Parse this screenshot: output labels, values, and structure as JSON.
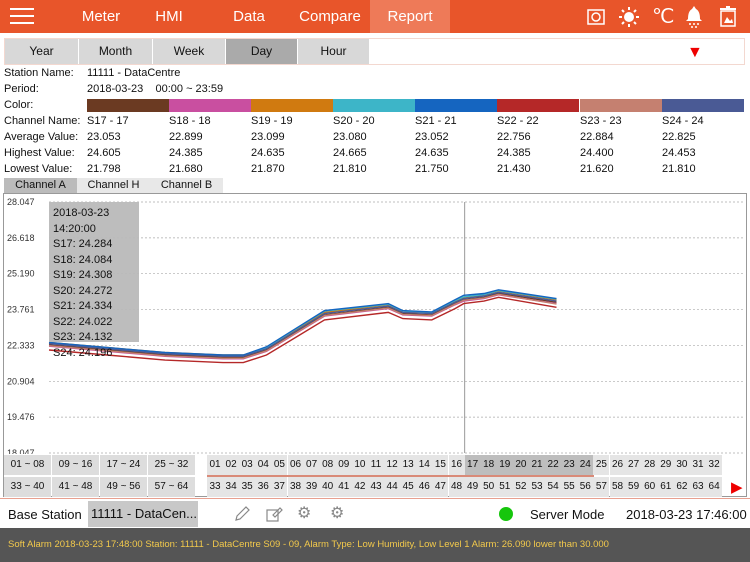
{
  "header": {
    "nav": [
      "Meter",
      "HMI",
      "Data",
      "Compare",
      "Report"
    ],
    "active": "Report",
    "icons": [
      "camera-icon",
      "brightness-icon",
      "celsius-icon",
      "alarm-bell-icon",
      "trash-icon"
    ],
    "celsius": "℃",
    "accent": "#E8552A"
  },
  "periods": {
    "items": [
      "Year",
      "Month",
      "Week",
      "Day",
      "Hour"
    ],
    "selected": "Day"
  },
  "info": {
    "station_label": "Station Name:",
    "station": "11111 - DataCentre",
    "period_label": "Period:",
    "period": "2018-03-23    00:00 ~ 23:59",
    "color_label": "Color:",
    "channel_label": "Channel Name:",
    "avg_label": "Average Value:",
    "high_label": "Highest Value:",
    "low_label": "Lowest Value:",
    "channels": [
      {
        "name": "S17 - 17",
        "avg": "23.053",
        "high": "24.605",
        "low": "21.798",
        "color": "#6B3A22"
      },
      {
        "name": "S18 - 18",
        "avg": "22.899",
        "high": "24.385",
        "low": "21.680",
        "color": "#C94FA0"
      },
      {
        "name": "S19 - 19",
        "avg": "23.099",
        "high": "24.635",
        "low": "21.870",
        "color": "#D07A10"
      },
      {
        "name": "S20 - 20",
        "avg": "23.080",
        "high": "24.665",
        "low": "21.810",
        "color": "#3DB5C8"
      },
      {
        "name": "S21 - 21",
        "avg": "23.052",
        "high": "24.635",
        "low": "21.750",
        "color": "#1565C0"
      },
      {
        "name": "S22 - 22",
        "avg": "22.756",
        "high": "24.385",
        "low": "21.430",
        "color": "#B52828"
      },
      {
        "name": "S23 - 23",
        "avg": "22.884",
        "high": "24.400",
        "low": "21.620",
        "color": "#C58070"
      },
      {
        "name": "S24 - 24",
        "avg": "22.825",
        "high": "24.453",
        "low": "21.810",
        "color": "#4A5A95"
      }
    ]
  },
  "channel_tabs": {
    "items": [
      "Channel A",
      "Channel H",
      "Channel B"
    ],
    "selected": "Channel A"
  },
  "tooltip": {
    "time": "2018-03-23 14:20:00",
    "lines": [
      "S17: 24.284",
      "S18: 24.084",
      "S19: 24.308",
      "S20: 24.272",
      "S21: 24.334",
      "S22: 24.022",
      "S23: 24.132",
      "S24: 24.196"
    ]
  },
  "chart_data": {
    "type": "line",
    "xlim": [
      0,
      24
    ],
    "ylim": [
      18.047,
      28.047
    ],
    "yticks": [
      "28.047",
      "26.618",
      "25.190",
      "23.761",
      "22.333",
      "20.904",
      "19.476",
      "18.047"
    ],
    "grid": true,
    "cursor_x": 14.333,
    "x": [
      0,
      2,
      4,
      6,
      6.7,
      7.5,
      8.5,
      9.5,
      11.7,
      12.2,
      13.2,
      14,
      14.3,
      15,
      15.5,
      17.5
    ],
    "series": [
      {
        "name": "S17",
        "color": "#6B3A22",
        "values": [
          22.35,
          22.15,
          21.95,
          21.85,
          21.85,
          22.15,
          22.85,
          23.55,
          23.85,
          23.6,
          23.55,
          24.0,
          24.15,
          24.25,
          24.4,
          24.05
        ]
      },
      {
        "name": "S18",
        "color": "#C94FA0",
        "values": [
          22.3,
          22.1,
          21.9,
          21.8,
          21.8,
          22.1,
          22.8,
          23.5,
          23.8,
          23.55,
          23.5,
          23.95,
          24.1,
          24.2,
          24.35,
          24.0
        ]
      },
      {
        "name": "S19",
        "color": "#D07A10",
        "values": [
          22.45,
          22.25,
          22.05,
          21.95,
          21.95,
          22.25,
          22.95,
          23.65,
          23.95,
          23.7,
          23.65,
          24.1,
          24.25,
          24.35,
          24.5,
          24.15
        ]
      },
      {
        "name": "S20",
        "color": "#3DB5C8",
        "values": [
          22.42,
          22.22,
          22.02,
          21.93,
          21.93,
          22.25,
          22.98,
          23.7,
          23.97,
          23.7,
          23.65,
          24.12,
          24.27,
          24.36,
          24.52,
          24.18
        ]
      },
      {
        "name": "S21",
        "color": "#1565C0",
        "values": [
          22.45,
          22.25,
          22.05,
          21.95,
          21.95,
          22.28,
          23.0,
          23.72,
          24.0,
          23.72,
          23.67,
          24.15,
          24.33,
          24.4,
          24.55,
          24.2
        ]
      },
      {
        "name": "S22",
        "color": "#B52828",
        "values": [
          22.15,
          21.95,
          21.75,
          21.65,
          21.65,
          21.95,
          22.65,
          23.35,
          23.65,
          23.4,
          23.35,
          23.8,
          24.0,
          24.1,
          24.25,
          23.85
        ]
      },
      {
        "name": "S23",
        "color": "#C58070",
        "values": [
          22.32,
          22.12,
          21.92,
          21.82,
          21.82,
          22.12,
          22.82,
          23.52,
          23.82,
          23.57,
          23.52,
          23.97,
          24.13,
          24.22,
          24.37,
          23.98
        ]
      },
      {
        "name": "S24",
        "color": "#4A5A95",
        "values": [
          22.4,
          22.2,
          22.0,
          21.9,
          21.9,
          22.2,
          22.9,
          23.6,
          23.9,
          23.65,
          23.6,
          24.05,
          24.2,
          24.3,
          24.45,
          24.1
        ]
      }
    ]
  },
  "channel_buttons": {
    "row1_groups": [
      "01 ~ 08",
      "09 ~ 16",
      "17 ~ 24",
      "25 ~ 32"
    ],
    "row2_groups": [
      "33 ~ 40",
      "41 ~ 48",
      "49 ~ 56",
      "57 ~ 64"
    ],
    "row1": [
      "01",
      "02",
      "03",
      "04",
      "05",
      "06",
      "07",
      "08",
      "09",
      "10",
      "11",
      "12",
      "13",
      "14",
      "15",
      "16",
      "17",
      "18",
      "19",
      "20",
      "21",
      "22",
      "23",
      "24",
      "25",
      "26",
      "27",
      "28",
      "29",
      "30",
      "31",
      "32"
    ],
    "row2": [
      "33",
      "34",
      "35",
      "36",
      "37",
      "38",
      "39",
      "40",
      "41",
      "42",
      "43",
      "44",
      "45",
      "46",
      "47",
      "48",
      "49",
      "50",
      "51",
      "52",
      "53",
      "54",
      "55",
      "56",
      "57",
      "58",
      "59",
      "60",
      "61",
      "62",
      "63",
      "64"
    ],
    "selected": [
      "17",
      "18",
      "19",
      "20",
      "21",
      "22",
      "23",
      "24"
    ]
  },
  "bottom": {
    "label": "Base Station",
    "station": "11111 - DataCen...",
    "status_color": "#16C60C",
    "mode": "Server Mode",
    "datetime": "2018-03-23 17:46:00"
  },
  "alarm": {
    "text": "Soft Alarm 2018-03-23 17:48:00 Station: 11111 - DataCentre S09 - 09, Alarm Type: Low Humidity, Low Level 1 Alarm: 26.090 lower than 30.000"
  }
}
